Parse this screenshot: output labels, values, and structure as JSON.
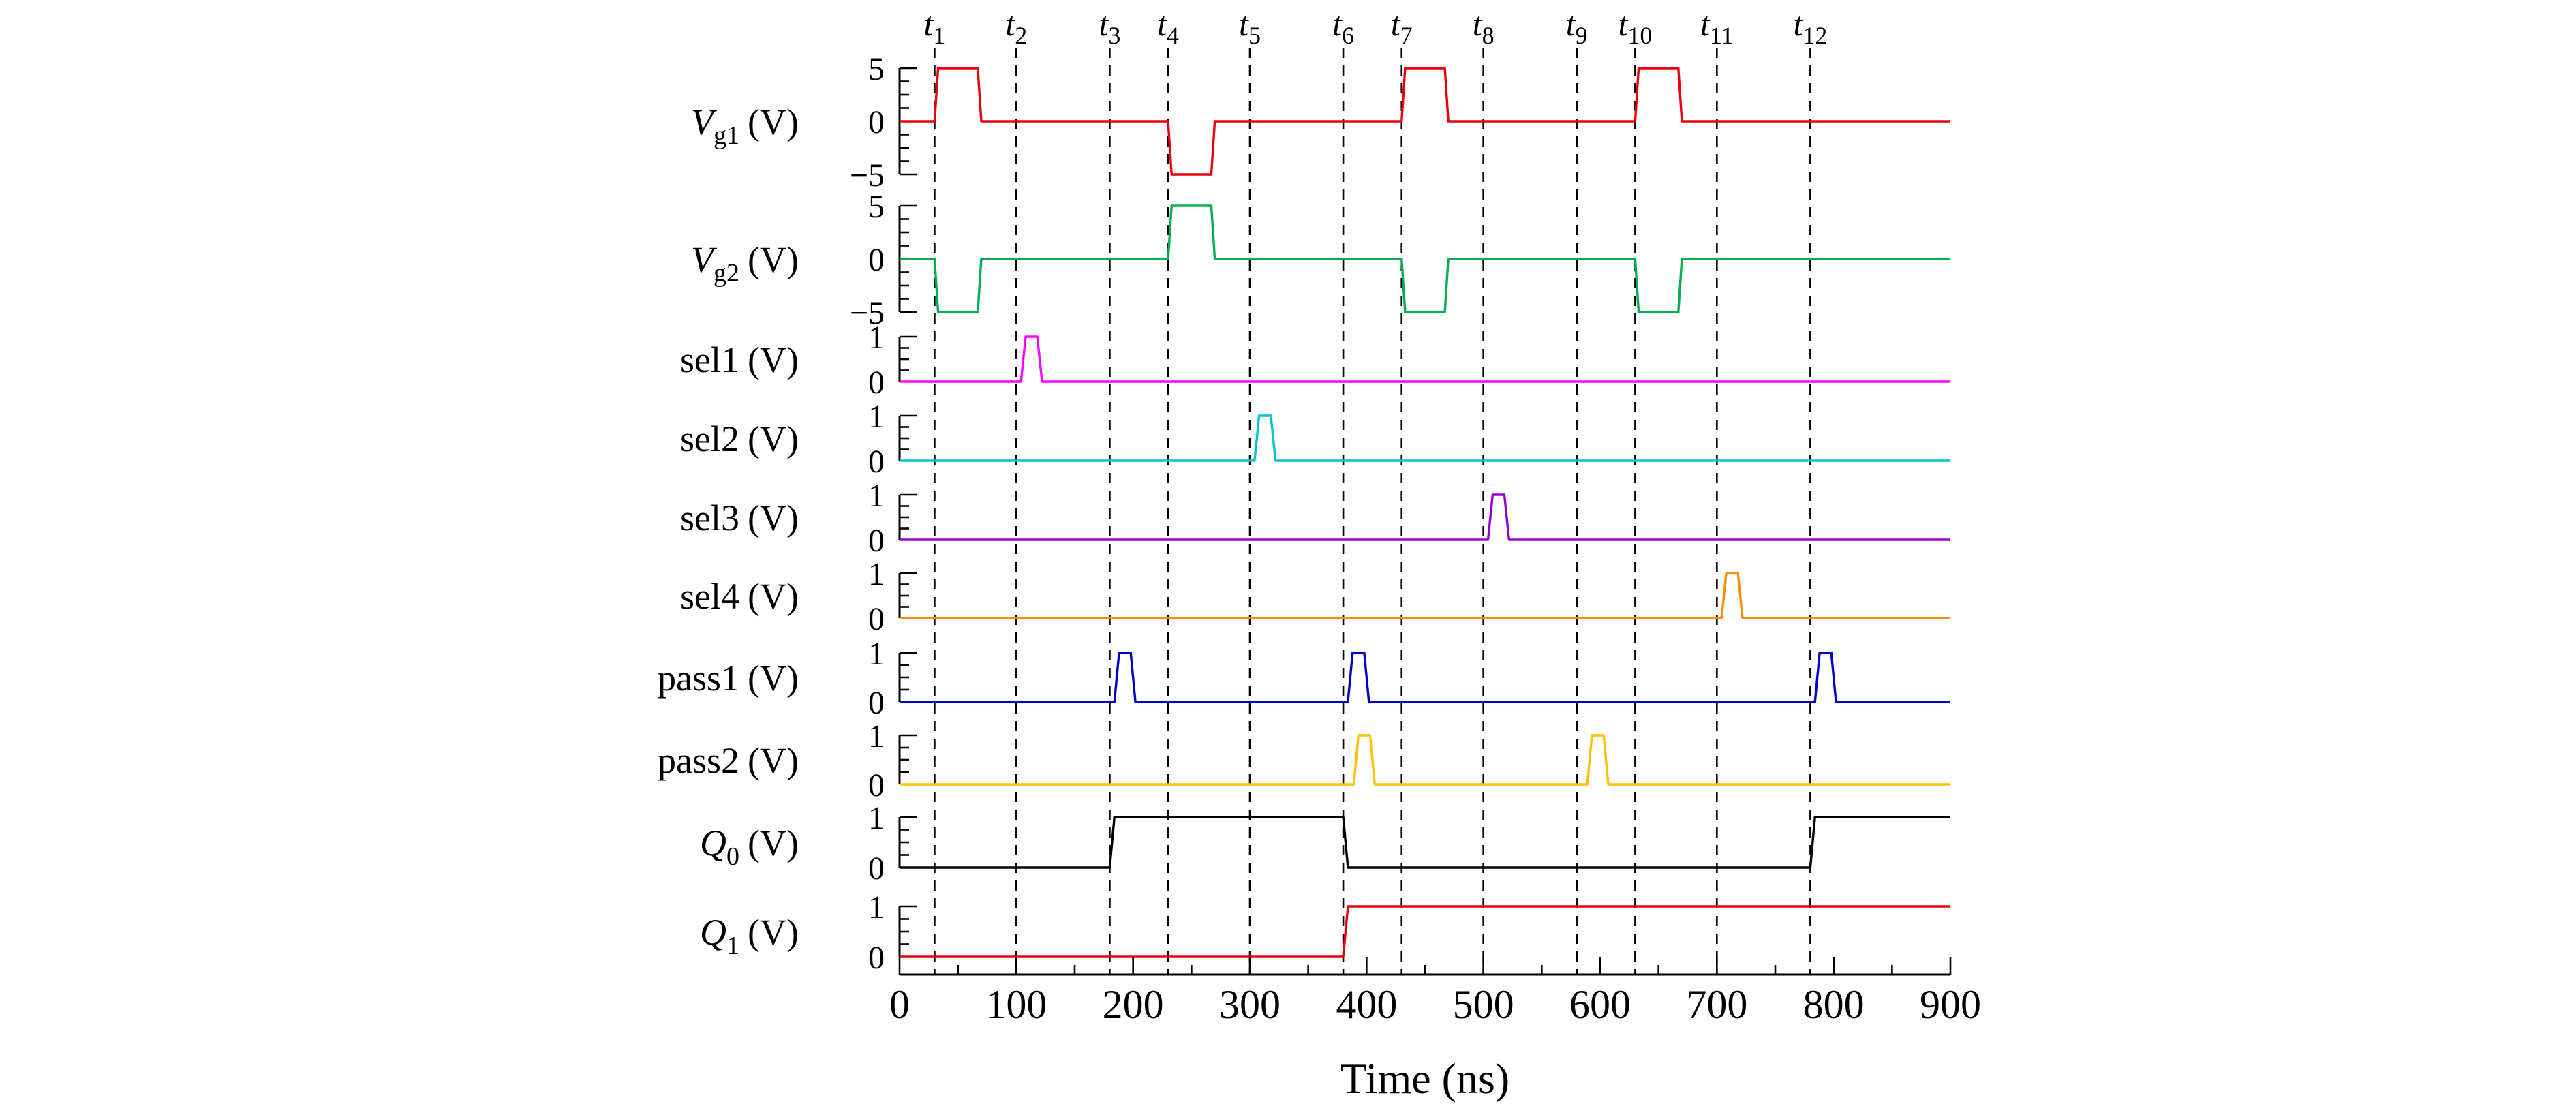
{
  "figure": {
    "background": "#ffffff",
    "axis_color": "#000000",
    "event_line_color": "#000000"
  },
  "chart_data": {
    "type": "line",
    "subtype": "timing-diagram",
    "title": "",
    "xlabel": "Time (ns)",
    "ylabel": "",
    "xlim": [
      0,
      900
    ],
    "x_ticks": [
      0,
      100,
      200,
      300,
      400,
      500,
      600,
      700,
      800,
      900
    ],
    "x_minor_tick_step": 50,
    "grid": false,
    "legend": "none",
    "event_markers": [
      {
        "name": "t",
        "sub": "1",
        "time": 30
      },
      {
        "name": "t",
        "sub": "2",
        "time": 100
      },
      {
        "name": "t",
        "sub": "3",
        "time": 180
      },
      {
        "name": "t",
        "sub": "4",
        "time": 230
      },
      {
        "name": "t",
        "sub": "5",
        "time": 300
      },
      {
        "name": "t",
        "sub": "6",
        "time": 380
      },
      {
        "name": "t",
        "sub": "7",
        "time": 430
      },
      {
        "name": "t",
        "sub": "8",
        "time": 500
      },
      {
        "name": "t",
        "sub": "9",
        "time": 580
      },
      {
        "name": "t",
        "sub": "10",
        "time": 630
      },
      {
        "name": "t",
        "sub": "11",
        "time": 700
      },
      {
        "name": "t",
        "sub": "12",
        "time": 780
      }
    ],
    "signals": [
      {
        "id": "Vg1",
        "label": {
          "var": "V",
          "italic_var": true,
          "sub": "g1",
          "unit": "(V)"
        },
        "color": "#e8000d",
        "ylim": [
          -5,
          5
        ],
        "y_ticks": [
          {
            "label": "5",
            "value": 5
          },
          {
            "label": "0",
            "value": 0
          },
          {
            "label": "−5",
            "value": -5
          }
        ],
        "points": [
          [
            0,
            0
          ],
          [
            30,
            0
          ],
          [
            33,
            5
          ],
          [
            67,
            5
          ],
          [
            70,
            0
          ],
          [
            230,
            0
          ],
          [
            233,
            -5
          ],
          [
            267,
            -5
          ],
          [
            270,
            0
          ],
          [
            430,
            0
          ],
          [
            433,
            5
          ],
          [
            467,
            5
          ],
          [
            470,
            0
          ],
          [
            630,
            0
          ],
          [
            633,
            5
          ],
          [
            667,
            5
          ],
          [
            670,
            0
          ],
          [
            900,
            0
          ]
        ]
      },
      {
        "id": "Vg2",
        "label": {
          "var": "V",
          "italic_var": true,
          "sub": "g2",
          "unit": "(V)"
        },
        "color": "#00b050",
        "ylim": [
          -5,
          5
        ],
        "y_ticks": [
          {
            "label": "5",
            "value": 5
          },
          {
            "label": "0",
            "value": 0
          },
          {
            "label": "−5",
            "value": -5
          }
        ],
        "points": [
          [
            0,
            0
          ],
          [
            30,
            0
          ],
          [
            33,
            -5
          ],
          [
            67,
            -5
          ],
          [
            70,
            0
          ],
          [
            230,
            0
          ],
          [
            233,
            5
          ],
          [
            267,
            5
          ],
          [
            270,
            0
          ],
          [
            430,
            0
          ],
          [
            433,
            -5
          ],
          [
            467,
            -5
          ],
          [
            470,
            0
          ],
          [
            630,
            0
          ],
          [
            633,
            -5
          ],
          [
            667,
            -5
          ],
          [
            670,
            0
          ],
          [
            900,
            0
          ]
        ]
      },
      {
        "id": "sel1",
        "label": {
          "var": "sel1",
          "italic_var": false,
          "sub": "",
          "unit": "(V)"
        },
        "color": "#ff00ff",
        "ylim": [
          0,
          1
        ],
        "y_ticks": [
          {
            "label": "1",
            "value": 1
          },
          {
            "label": "0",
            "value": 0
          }
        ],
        "points": [
          [
            0,
            0
          ],
          [
            104,
            0
          ],
          [
            108,
            1
          ],
          [
            118,
            1
          ],
          [
            122,
            0
          ],
          [
            900,
            0
          ]
        ]
      },
      {
        "id": "sel2",
        "label": {
          "var": "sel2",
          "italic_var": false,
          "sub": "",
          "unit": "(V)"
        },
        "color": "#00c5cb",
        "ylim": [
          0,
          1
        ],
        "y_ticks": [
          {
            "label": "1",
            "value": 1
          },
          {
            "label": "0",
            "value": 0
          }
        ],
        "points": [
          [
            0,
            0
          ],
          [
            304,
            0
          ],
          [
            308,
            1
          ],
          [
            318,
            1
          ],
          [
            322,
            0
          ],
          [
            900,
            0
          ]
        ]
      },
      {
        "id": "sel3",
        "label": {
          "var": "sel3",
          "italic_var": false,
          "sub": "",
          "unit": "(V)"
        },
        "color": "#9400d3",
        "ylim": [
          0,
          1
        ],
        "y_ticks": [
          {
            "label": "1",
            "value": 1
          },
          {
            "label": "0",
            "value": 0
          }
        ],
        "points": [
          [
            0,
            0
          ],
          [
            504,
            0
          ],
          [
            508,
            1
          ],
          [
            518,
            1
          ],
          [
            522,
            0
          ],
          [
            900,
            0
          ]
        ]
      },
      {
        "id": "sel4",
        "label": {
          "var": "sel4",
          "italic_var": false,
          "sub": "",
          "unit": "(V)"
        },
        "color": "#ff8c00",
        "ylim": [
          0,
          1
        ],
        "y_ticks": [
          {
            "label": "1",
            "value": 1
          },
          {
            "label": "0",
            "value": 0
          }
        ],
        "points": [
          [
            0,
            0
          ],
          [
            704,
            0
          ],
          [
            708,
            1
          ],
          [
            718,
            1
          ],
          [
            722,
            0
          ],
          [
            900,
            0
          ]
        ]
      },
      {
        "id": "pass1",
        "label": {
          "var": "pass1",
          "italic_var": false,
          "sub": "",
          "unit": "(V)"
        },
        "color": "#0000cd",
        "ylim": [
          0,
          1
        ],
        "y_ticks": [
          {
            "label": "1",
            "value": 1
          },
          {
            "label": "0",
            "value": 0
          }
        ],
        "points": [
          [
            0,
            0
          ],
          [
            184,
            0
          ],
          [
            188,
            1
          ],
          [
            198,
            1
          ],
          [
            202,
            0
          ],
          [
            384,
            0
          ],
          [
            388,
            1
          ],
          [
            398,
            1
          ],
          [
            402,
            0
          ],
          [
            784,
            0
          ],
          [
            788,
            1
          ],
          [
            798,
            1
          ],
          [
            802,
            0
          ],
          [
            900,
            0
          ]
        ]
      },
      {
        "id": "pass2",
        "label": {
          "var": "pass2",
          "italic_var": false,
          "sub": "",
          "unit": "(V)"
        },
        "color": "#ffc000",
        "ylim": [
          0,
          1
        ],
        "y_ticks": [
          {
            "label": "1",
            "value": 1
          },
          {
            "label": "0",
            "value": 0
          }
        ],
        "points": [
          [
            0,
            0
          ],
          [
            389,
            0
          ],
          [
            393,
            1
          ],
          [
            403,
            1
          ],
          [
            407,
            0
          ],
          [
            589,
            0
          ],
          [
            593,
            1
          ],
          [
            603,
            1
          ],
          [
            607,
            0
          ],
          [
            900,
            0
          ]
        ]
      },
      {
        "id": "Q0",
        "label": {
          "var": "Q",
          "italic_var": true,
          "sub": "0",
          "unit": "(V)"
        },
        "color": "#000000",
        "ylim": [
          0,
          1
        ],
        "y_ticks": [
          {
            "label": "1",
            "value": 1
          },
          {
            "label": "0",
            "value": 0
          }
        ],
        "points": [
          [
            0,
            0
          ],
          [
            180,
            0
          ],
          [
            184,
            1
          ],
          [
            380,
            1
          ],
          [
            384,
            0
          ],
          [
            780,
            0
          ],
          [
            784,
            1
          ],
          [
            900,
            1
          ]
        ]
      },
      {
        "id": "Q1",
        "label": {
          "var": "Q",
          "italic_var": true,
          "sub": "1",
          "unit": "(V)"
        },
        "color": "#e8000d",
        "ylim": [
          0,
          1
        ],
        "y_ticks": [
          {
            "label": "1",
            "value": 1
          },
          {
            "label": "0",
            "value": 0
          }
        ],
        "points": [
          [
            0,
            0
          ],
          [
            380,
            0
          ],
          [
            384,
            1
          ],
          [
            900,
            1
          ]
        ]
      }
    ]
  }
}
